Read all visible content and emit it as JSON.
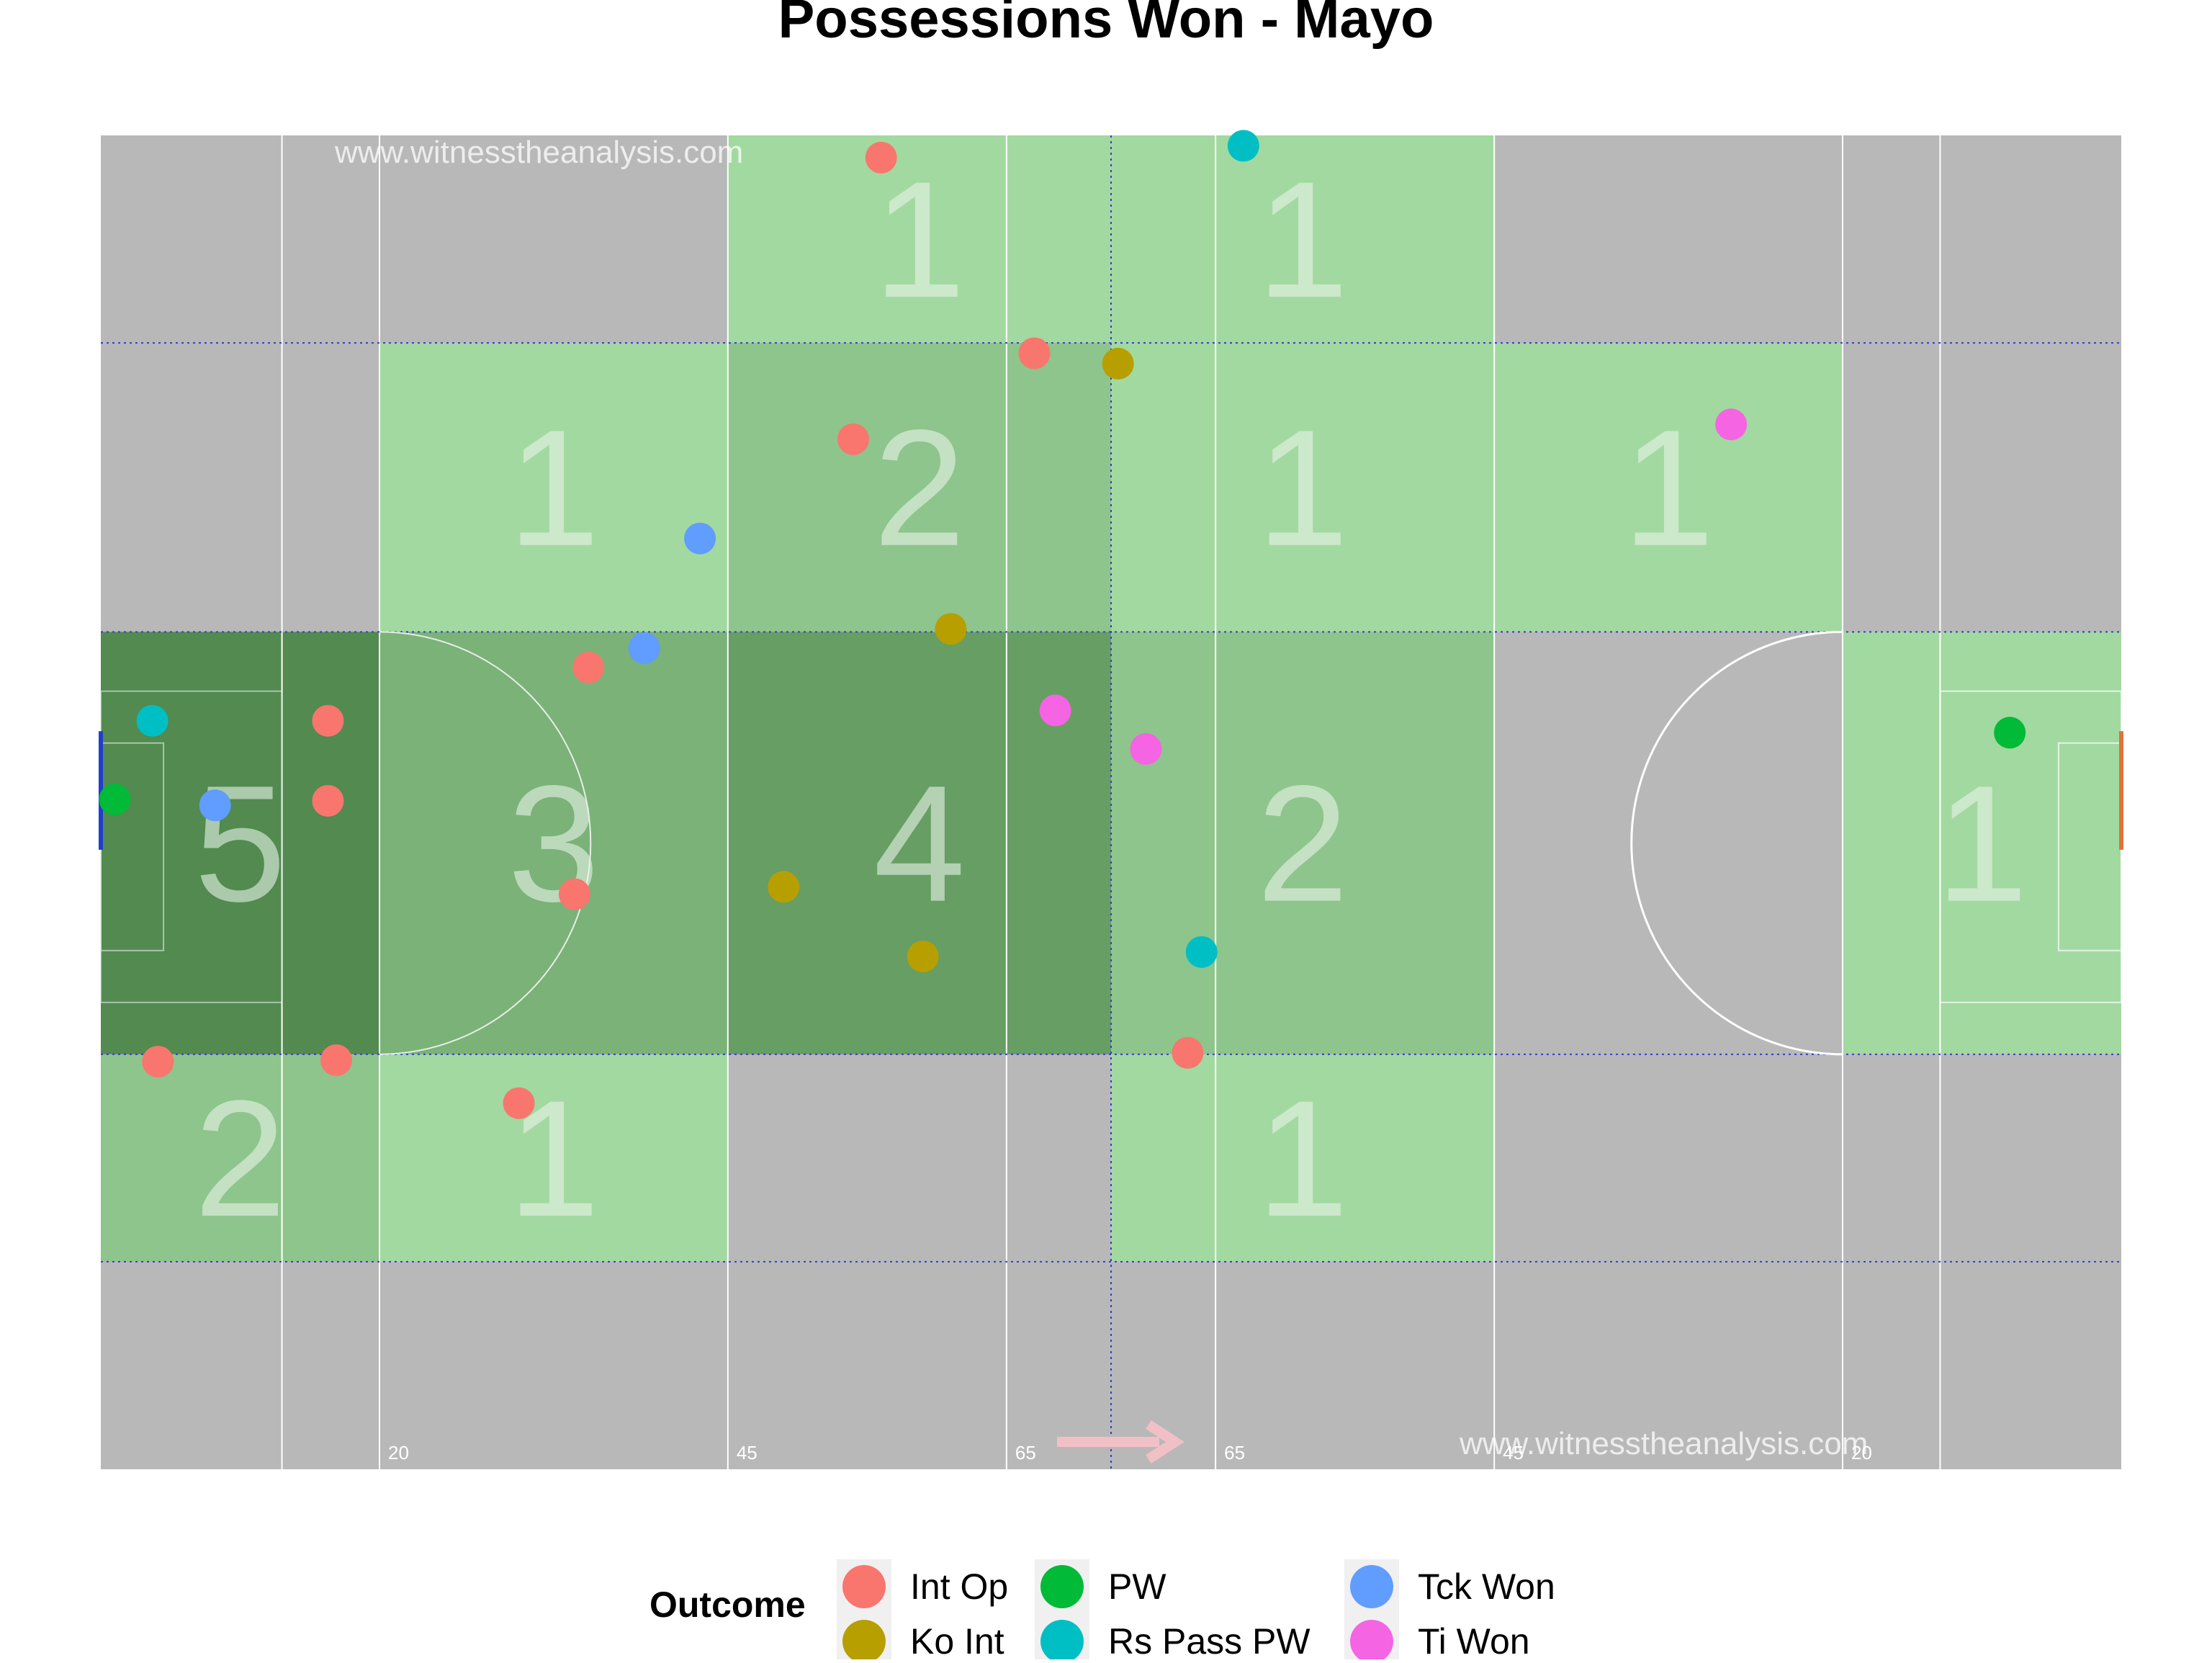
{
  "chart_data": {
    "type": "heatmap",
    "title": "Possessions Won - Mayo",
    "watermarks": [
      "www.witnesstheanalysis.com",
      "www.witnesstheanalysis.com"
    ],
    "pitch": {
      "x_range": [
        0,
        145
      ],
      "y_range": [
        0,
        90
      ],
      "line_labels": [
        {
          "x": 20,
          "label": "20"
        },
        {
          "x": 45,
          "label": "45"
        },
        {
          "x": 65,
          "label": "65"
        },
        {
          "x": 80,
          "label": "65"
        },
        {
          "x": 100,
          "label": "45"
        },
        {
          "x": 125,
          "label": "20"
        }
      ],
      "attack_direction": "right"
    },
    "zones": [
      {
        "x0": 45,
        "x1": 72.5,
        "y0": 76,
        "y1": 90,
        "count": 1
      },
      {
        "x0": 72.5,
        "x1": 100,
        "y0": 76,
        "y1": 90,
        "count": 1
      },
      {
        "x0": 20,
        "x1": 45,
        "y0": 56.5,
        "y1": 76,
        "count": 1
      },
      {
        "x0": 45,
        "x1": 72.5,
        "y0": 56.5,
        "y1": 76,
        "count": 2
      },
      {
        "x0": 72.5,
        "x1": 100,
        "y0": 56.5,
        "y1": 76,
        "count": 1
      },
      {
        "x0": 100,
        "x1": 125,
        "y0": 56.5,
        "y1": 76,
        "count": 1
      },
      {
        "x0": 0,
        "x1": 20,
        "y0": 28,
        "y1": 56.5,
        "count": 5
      },
      {
        "x0": 20,
        "x1": 45,
        "y0": 28,
        "y1": 56.5,
        "count": 3
      },
      {
        "x0": 45,
        "x1": 72.5,
        "y0": 28,
        "y1": 56.5,
        "count": 4
      },
      {
        "x0": 72.5,
        "x1": 100,
        "y0": 28,
        "y1": 56.5,
        "count": 2
      },
      {
        "x0": 125,
        "x1": 145,
        "y0": 28,
        "y1": 56.5,
        "count": 1
      },
      {
        "x0": 0,
        "x1": 20,
        "y0": 14,
        "y1": 28,
        "count": 2
      },
      {
        "x0": 20,
        "x1": 45,
        "y0": 14,
        "y1": 28,
        "count": 1
      },
      {
        "x0": 72.5,
        "x1": 100,
        "y0": 14,
        "y1": 28,
        "count": 1
      }
    ],
    "points": [
      {
        "x": 56,
        "y": 88.5,
        "outcome": "Int Op"
      },
      {
        "x": 82,
        "y": 89.3,
        "outcome": "Rs Pass PW"
      },
      {
        "x": 67,
        "y": 75.3,
        "outcome": "Int Op"
      },
      {
        "x": 73,
        "y": 74.6,
        "outcome": "Ko Int"
      },
      {
        "x": 54,
        "y": 69.5,
        "outcome": "Int Op"
      },
      {
        "x": 117,
        "y": 70.5,
        "outcome": "Ti Won"
      },
      {
        "x": 43,
        "y": 62.8,
        "outcome": "Tck Won"
      },
      {
        "x": 39,
        "y": 55.4,
        "outcome": "Tck Won"
      },
      {
        "x": 35,
        "y": 54.1,
        "outcome": "Int Op"
      },
      {
        "x": 61,
        "y": 56.7,
        "outcome": "Ko Int"
      },
      {
        "x": 3.7,
        "y": 50.5,
        "outcome": "Rs Pass PW"
      },
      {
        "x": 16.3,
        "y": 50.5,
        "outcome": "Int Op"
      },
      {
        "x": 68.5,
        "y": 51.2,
        "outcome": "Ti Won"
      },
      {
        "x": 75,
        "y": 48.6,
        "outcome": "Ti Won"
      },
      {
        "x": 137,
        "y": 49.7,
        "outcome": "PW"
      },
      {
        "x": 1.0,
        "y": 45.2,
        "outcome": "PW"
      },
      {
        "x": 8.2,
        "y": 44.8,
        "outcome": "Tck Won"
      },
      {
        "x": 16.3,
        "y": 45.1,
        "outcome": "Int Op"
      },
      {
        "x": 34,
        "y": 38.8,
        "outcome": "Int Op"
      },
      {
        "x": 49,
        "y": 39.3,
        "outcome": "Ko Int"
      },
      {
        "x": 59,
        "y": 34.6,
        "outcome": "Ko Int"
      },
      {
        "x": 79,
        "y": 34.9,
        "outcome": "Rs Pass PW"
      },
      {
        "x": 4.1,
        "y": 27.5,
        "outcome": "Int Op"
      },
      {
        "x": 16.9,
        "y": 27.6,
        "outcome": "Int Op"
      },
      {
        "x": 78,
        "y": 28.1,
        "outcome": "Int Op"
      },
      {
        "x": 30,
        "y": 24.7,
        "outcome": "Int Op"
      }
    ],
    "legend": {
      "title": "Outcome",
      "placement": "bottom",
      "entries": [
        {
          "name": "Int Op",
          "color": "#F8766D"
        },
        {
          "name": "Ko Int",
          "color": "#B79F00"
        },
        {
          "name": "PW",
          "color": "#00BA38"
        },
        {
          "name": "Rs Pass PW",
          "color": "#00BFC4"
        },
        {
          "name": "Tck Won",
          "color": "#619CFF"
        },
        {
          "name": "Ti Won",
          "color": "#F564E3"
        }
      ]
    },
    "colors": {
      "pitch": "#b8b8b8",
      "zone_low": "#a2d9a0",
      "zone_high": "#528a50",
      "count_text": "#e8f3e8",
      "pitch_lines": "#ffffff",
      "grid_dotted": "#3a3ad0",
      "left_goal": "#1f3fcc",
      "right_goal": "#e0733a",
      "arrow": "#f1c0c6",
      "watermark": "#ffffff"
    }
  }
}
